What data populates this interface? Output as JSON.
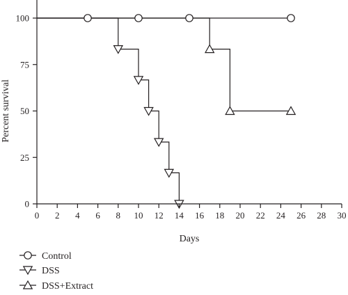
{
  "chart_data": {
    "type": "line",
    "step": true,
    "xlabel": "Days",
    "ylabel": "Percent survival",
    "xlim": [
      0,
      30
    ],
    "ylim": [
      0,
      100
    ],
    "xticks": [
      "0",
      "2",
      "4",
      "6",
      "8",
      "10",
      "12",
      "14",
      "16",
      "18",
      "20",
      "22",
      "24",
      "26",
      "28",
      "30"
    ],
    "yticks": [
      "0",
      "25",
      "50",
      "75",
      "100"
    ],
    "grid": false,
    "legend_position": "bottom-left",
    "series": [
      {
        "name": "Control",
        "marker": "circle",
        "line_points": [
          [
            0,
            100
          ],
          [
            25,
            100
          ]
        ],
        "markers": [
          [
            5,
            100
          ],
          [
            10,
            100
          ],
          [
            15,
            100
          ],
          [
            25,
            100
          ]
        ]
      },
      {
        "name": "DSS",
        "marker": "triangle-down",
        "line_points": [
          [
            0,
            100
          ],
          [
            8,
            100
          ],
          [
            8,
            83.3
          ],
          [
            10,
            83.3
          ],
          [
            10,
            66.7
          ],
          [
            11,
            66.7
          ],
          [
            11,
            50
          ],
          [
            12,
            50
          ],
          [
            12,
            33.3
          ],
          [
            13,
            33.3
          ],
          [
            13,
            16.7
          ],
          [
            14,
            16.7
          ],
          [
            14,
            0
          ]
        ],
        "markers": [
          [
            8,
            83.3
          ],
          [
            10,
            66.7
          ],
          [
            11,
            50
          ],
          [
            12,
            33.3
          ],
          [
            13,
            16.7
          ],
          [
            14,
            0
          ]
        ]
      },
      {
        "name": "DSS+Extract",
        "marker": "triangle-up",
        "line_points": [
          [
            0,
            100
          ],
          [
            17,
            100
          ],
          [
            17,
            83.3
          ],
          [
            19,
            83.3
          ],
          [
            19,
            50
          ],
          [
            25,
            50
          ]
        ],
        "markers": [
          [
            17,
            83.3
          ],
          [
            19,
            50
          ],
          [
            25,
            50
          ]
        ]
      }
    ]
  }
}
